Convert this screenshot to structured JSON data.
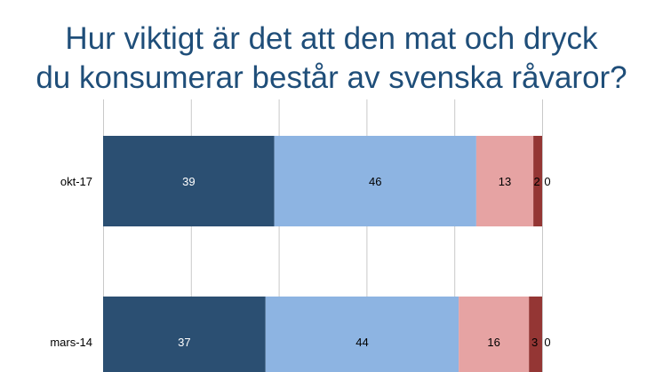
{
  "title_lines": [
    "Hur viktigt är det att den mat och dryck",
    "du konsumerar består av svenska råvaror?"
  ],
  "chart_data": {
    "type": "bar",
    "orientation": "horizontal",
    "stacked": true,
    "title": "Hur viktigt är det att den mat och dryck du konsumerar består av svenska råvaror?",
    "categories": [
      "okt-17",
      "mars-14"
    ],
    "series": [
      {
        "values": [
          39,
          37
        ],
        "color": "#2b4f72",
        "label_color": "#ffffff"
      },
      {
        "values": [
          46,
          44
        ],
        "color": "#8db4e2",
        "label_color": "#000000"
      },
      {
        "values": [
          13,
          16
        ],
        "color": "#e6a3a3",
        "label_color": "#000000"
      },
      {
        "values": [
          2,
          3
        ],
        "color": "#943634",
        "label_color": "#000000"
      },
      {
        "values": [
          0,
          0
        ],
        "color": "#943634",
        "label_color": "#000000"
      }
    ],
    "xlim": [
      0,
      100
    ],
    "grid": true
  }
}
